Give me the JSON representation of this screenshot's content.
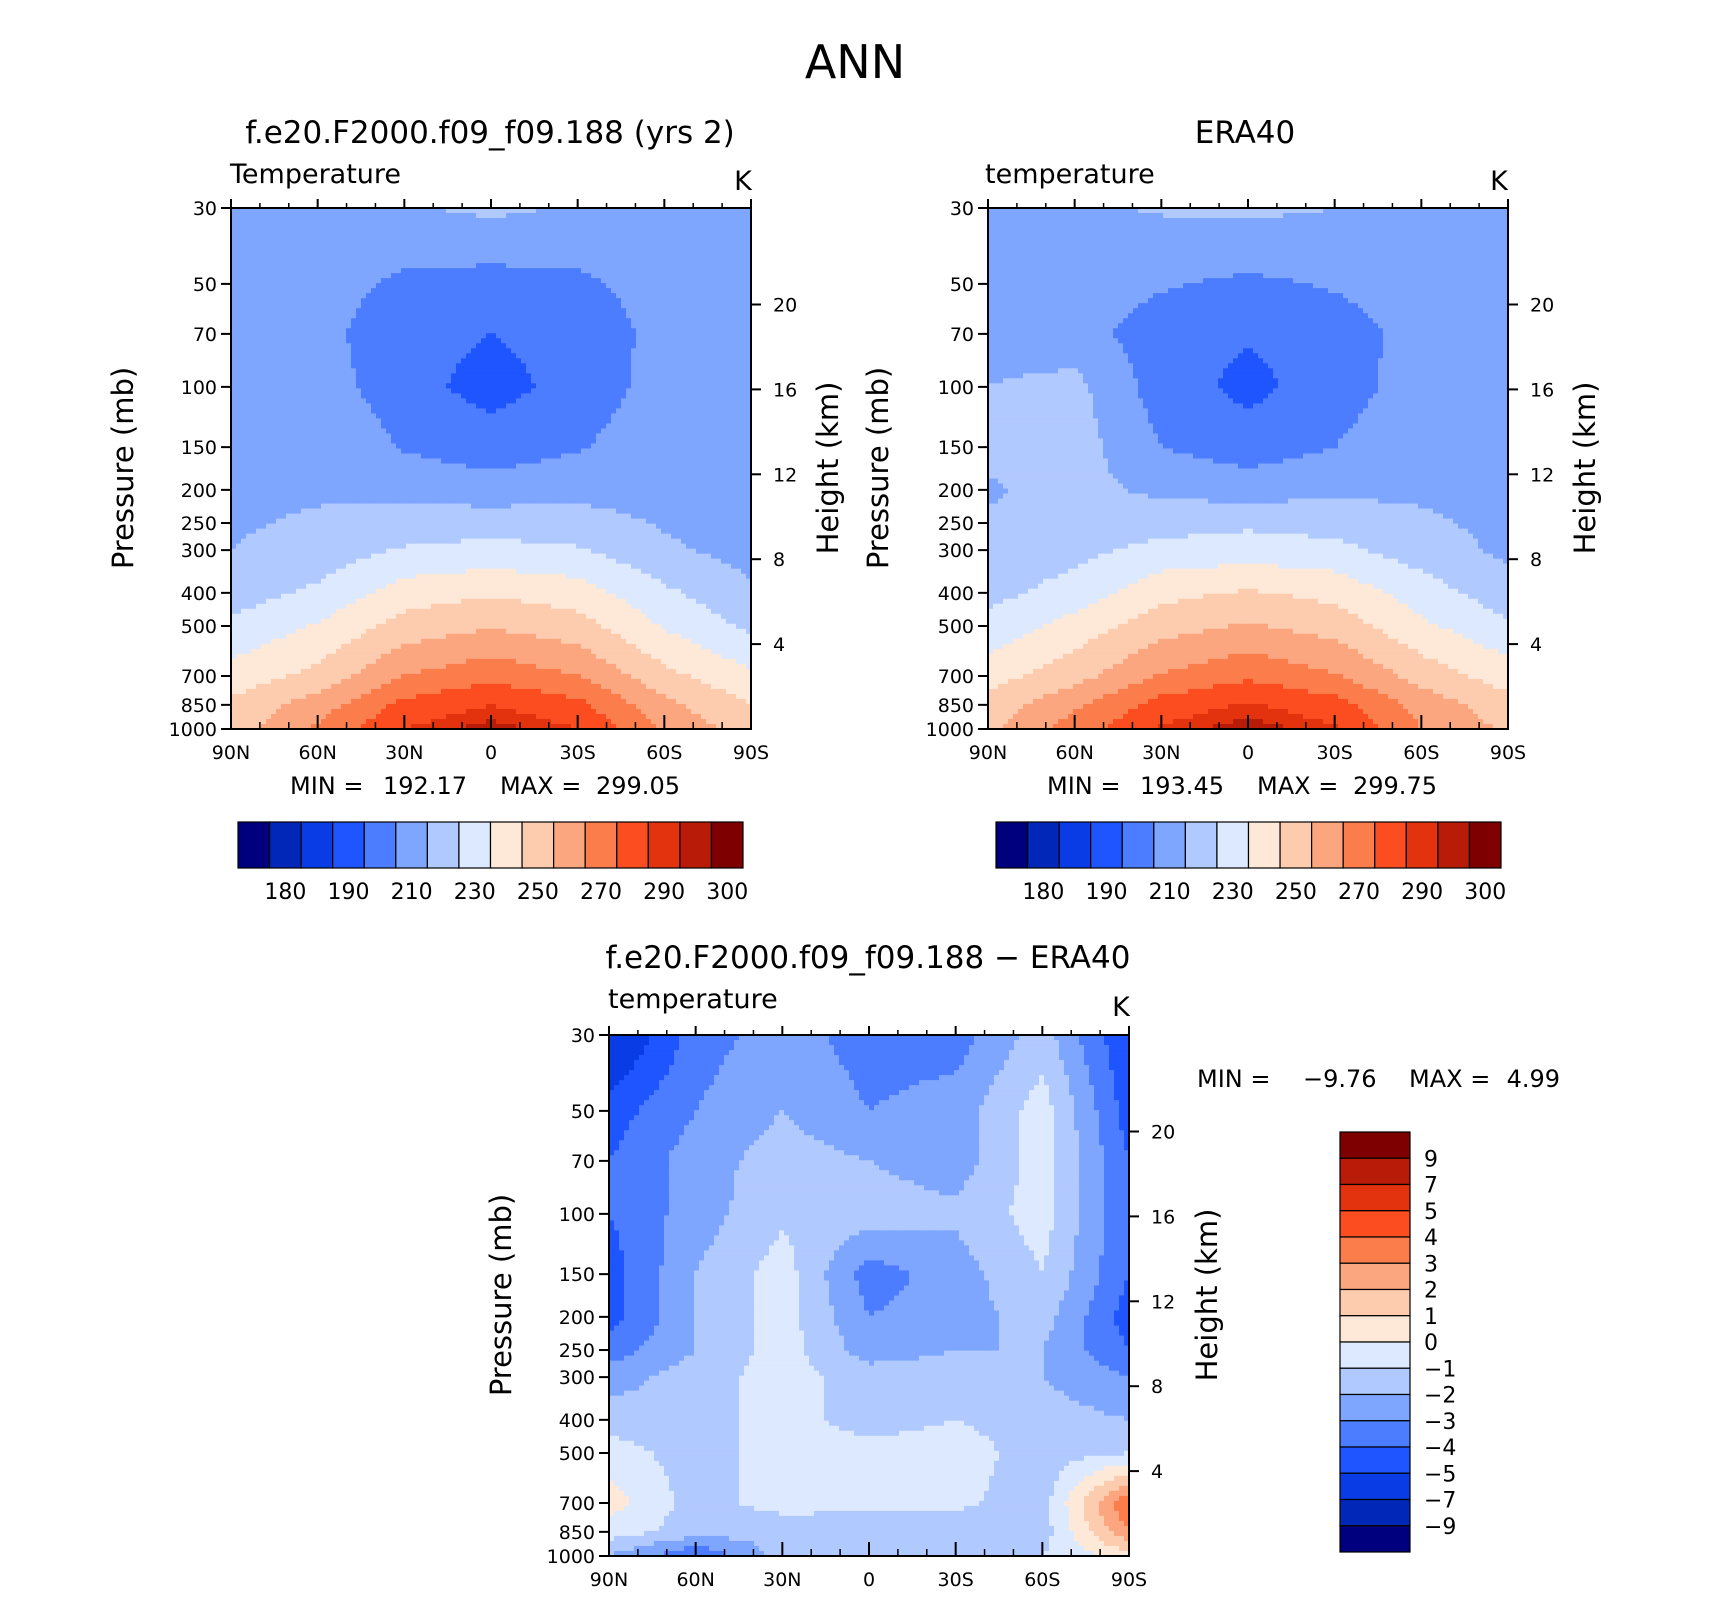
{
  "figure_title": "ANN",
  "colors": {
    "temperature_palette": [
      "#00007f",
      "#0027b8",
      "#0a3ce6",
      "#1e55ff",
      "#4c7cff",
      "#7ea6ff",
      "#b0c9ff",
      "#dce9fe",
      "#fee9d8",
      "#fdcbae",
      "#fca680",
      "#fc7d4c",
      "#fb4d1f",
      "#e2320e",
      "#b81c08",
      "#7f0000"
    ],
    "difference_palette": [
      "#00007f",
      "#0027b8",
      "#0a3ce6",
      "#1e55ff",
      "#4c7cff",
      "#7ea6ff",
      "#b0c9ff",
      "#dce9fe",
      "#fee9d8",
      "#fdcbae",
      "#fca680",
      "#fc7d4c",
      "#fb4d1f",
      "#e2320e",
      "#b81c08",
      "#7f0000"
    ]
  },
  "shared_axes": {
    "ylabel": "Pressure (mb)",
    "ylabel_right": "Height (km)",
    "x_tick_labels": [
      "90N",
      "60N",
      "30N",
      "0",
      "30S",
      "60S",
      "90S"
    ],
    "y_tick_labels": [
      "30",
      "50",
      "70",
      "100",
      "150",
      "200",
      "250",
      "300",
      "400",
      "500",
      "700",
      "850",
      "1000"
    ],
    "right_tick_labels": [
      "20",
      "16",
      "12",
      "8",
      "4"
    ]
  },
  "panels": [
    {
      "title": "f.e20.F2000.f09_f09.188 (yrs 2)",
      "field_label": "Temperature",
      "units": "K",
      "min_label": "MIN =",
      "min_value": "192.17",
      "max_label": "MAX =",
      "max_value": "299.05",
      "colorbar_labels": [
        "180",
        "190",
        "210",
        "230",
        "250",
        "270",
        "290",
        "300"
      ]
    },
    {
      "title": "ERA40",
      "field_label": "temperature",
      "units": "K",
      "min_label": "MIN =",
      "min_value": "193.45",
      "max_label": "MAX =",
      "max_value": "299.75",
      "colorbar_labels": [
        "180",
        "190",
        "210",
        "230",
        "250",
        "270",
        "290",
        "300"
      ]
    },
    {
      "title": "f.e20.F2000.f09_f09.188 − ERA40",
      "field_label": "temperature",
      "units": "K",
      "min_label": "MIN =",
      "min_value": "−9.76",
      "max_label": "MAX =",
      "max_value": "4.99",
      "colorbar_labels": [
        "9",
        "7",
        "5",
        "4",
        "3",
        "2",
        "1",
        "0",
        "−1",
        "−2",
        "−3",
        "−4",
        "−5",
        "−7",
        "−9"
      ]
    }
  ],
  "chart_data": [
    {
      "type": "heatmap",
      "title": "f.e20.F2000.f09_f09.188 (yrs 2)",
      "field": "Temperature",
      "units": "K",
      "xlabel": "",
      "ylabel": "Pressure (mb)",
      "ylabel_right": "Height (km)",
      "x_values": [
        90,
        60,
        30,
        0,
        -30,
        -60,
        -90
      ],
      "x_tick_labels": [
        "90N",
        "60N",
        "30N",
        "0",
        "30S",
        "60S",
        "90S"
      ],
      "y_scale": "log",
      "y_values": [
        30,
        50,
        70,
        100,
        150,
        200,
        250,
        300,
        400,
        500,
        700,
        850,
        1000
      ],
      "right_axis_km": [
        20,
        16,
        12,
        8,
        4
      ],
      "contour_levels": [
        180,
        185,
        190,
        200,
        210,
        220,
        230,
        240,
        250,
        260,
        270,
        280,
        290,
        295,
        300
      ],
      "z": [
        [
          213,
          215,
          219,
          222,
          219,
          214,
          210
        ],
        [
          214,
          214,
          208,
          206,
          208,
          214,
          211
        ],
        [
          215,
          213,
          204,
          200,
          204,
          213,
          211
        ],
        [
          217,
          215,
          204,
          196,
          204,
          214,
          212
        ],
        [
          219,
          220,
          209,
          205,
          209,
          217,
          213
        ],
        [
          219,
          219,
          217,
          214,
          217,
          217,
          214
        ],
        [
          219,
          221,
          224,
          226,
          224,
          219,
          215
        ],
        [
          220,
          224,
          231,
          233,
          231,
          222,
          216
        ],
        [
          225,
          232,
          245,
          249,
          245,
          232,
          222
        ],
        [
          232,
          241,
          254,
          259,
          254,
          239,
          228
        ],
        [
          244,
          253,
          270,
          277,
          270,
          253,
          242
        ],
        [
          252,
          265,
          283,
          290,
          283,
          263,
          250
        ],
        [
          255,
          272,
          290,
          298,
          290,
          268,
          255
        ]
      ],
      "min": 192.17,
      "max": 299.05
    },
    {
      "type": "heatmap",
      "title": "ERA40",
      "field": "temperature",
      "units": "K",
      "xlabel": "",
      "ylabel": "Pressure (mb)",
      "ylabel_right": "Height (km)",
      "x_values": [
        90,
        60,
        30,
        0,
        -30,
        -60,
        -90
      ],
      "x_tick_labels": [
        "90N",
        "60N",
        "30N",
        "0",
        "30S",
        "60S",
        "90S"
      ],
      "y_scale": "log",
      "y_values": [
        30,
        50,
        70,
        100,
        150,
        200,
        250,
        300,
        400,
        500,
        700,
        850,
        1000
      ],
      "right_axis_km": [
        20,
        16,
        12,
        8,
        4
      ],
      "contour_levels": [
        180,
        185,
        190,
        200,
        210,
        220,
        230,
        240,
        250,
        260,
        270,
        280,
        290,
        295,
        300
      ],
      "z": [
        [
          215,
          218,
          221,
          222,
          220,
          219,
          211
        ],
        [
          215,
          215,
          211,
          208,
          211,
          215,
          212
        ],
        [
          216,
          214,
          205,
          201,
          205,
          214,
          212
        ],
        [
          220,
          223,
          205,
          197,
          205,
          215,
          212
        ],
        [
          222,
          225,
          210,
          205,
          210,
          218,
          214
        ],
        [
          219,
          223,
          218,
          215,
          218,
          218,
          215
        ],
        [
          221,
          224,
          226,
          228,
          226,
          222,
          217
        ],
        [
          223,
          227,
          233,
          235,
          233,
          225,
          218
        ],
        [
          227,
          234,
          247,
          251,
          247,
          235,
          224
        ],
        [
          233,
          244,
          256,
          261,
          256,
          242,
          232
        ],
        [
          246,
          256,
          271,
          278,
          271,
          256,
          245
        ],
        [
          254,
          268,
          284,
          291,
          284,
          266,
          254
        ],
        [
          257,
          275,
          291,
          299,
          291,
          270,
          258
        ]
      ],
      "min": 193.45,
      "max": 299.75
    },
    {
      "type": "heatmap",
      "title": "f.e20.F2000.f09_f09.188 − ERA40",
      "field": "temperature",
      "units": "K",
      "xlabel": "",
      "ylabel": "Pressure (mb)",
      "ylabel_right": "Height (km)",
      "x_values": [
        90,
        60,
        30,
        0,
        -30,
        -60,
        -90
      ],
      "x_tick_labels": [
        "90N",
        "60N",
        "30N",
        "0",
        "30S",
        "60S",
        "90S"
      ],
      "y_scale": "log",
      "y_values": [
        30,
        50,
        70,
        100,
        150,
        200,
        250,
        300,
        400,
        500,
        700,
        850,
        1000
      ],
      "right_axis_km": [
        20,
        16,
        12,
        8,
        4
      ],
      "contour_levels": [
        -9,
        -7,
        -5,
        -4,
        -3,
        -2,
        -1,
        0,
        1,
        2,
        3,
        4,
        5,
        7,
        9
      ],
      "z": [
        [
          -6.5,
          -3.5,
          -2.5,
          -3.5,
          -3.5,
          -1.5,
          -5
        ],
        [
          -4.5,
          -3,
          -2,
          -3,
          -2.5,
          -0.5,
          -4.5
        ],
        [
          -4,
          -2.5,
          -1.5,
          -2,
          -2.5,
          -0.5,
          -4
        ],
        [
          -4,
          -2.5,
          -1.2,
          -1.5,
          -1.8,
          -0.5,
          -4
        ],
        [
          -4.5,
          -2,
          -0.5,
          -3.5,
          -2.5,
          -1,
          -4
        ],
        [
          -4.5,
          -2,
          -0.5,
          -3,
          -2.5,
          -1.5,
          -4.5
        ],
        [
          -3.5,
          -2,
          -0.5,
          -2.5,
          -2,
          -2,
          -4
        ],
        [
          -2.5,
          -1.5,
          -0.5,
          -1.5,
          -1.5,
          -2,
          -3
        ],
        [
          -1.5,
          -1.5,
          -0.5,
          -1.5,
          -1,
          -1.5,
          -2
        ],
        [
          -0.5,
          -1.5,
          -0.5,
          -0.5,
          -0.5,
          -1.5,
          -1
        ],
        [
          0.5,
          -1.5,
          -0.5,
          -0.8,
          -0.8,
          -1.5,
          4
        ],
        [
          -0.5,
          -1.5,
          -1.8,
          -1.5,
          -1.5,
          -1.5,
          3
        ],
        [
          -2,
          -4,
          -1.5,
          -1,
          -1.5,
          -1,
          0.5
        ]
      ],
      "min": -9.76,
      "max": 4.99
    }
  ]
}
